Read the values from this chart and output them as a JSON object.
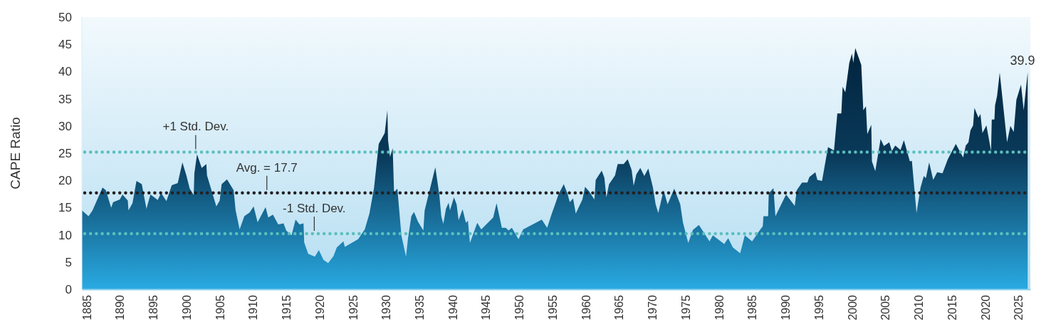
{
  "chart_data": {
    "type": "area",
    "ylabel": "CAPE Ratio",
    "xlim": [
      1884.3,
      2026.8
    ],
    "ylim": [
      0,
      50
    ],
    "xticks": [
      1885,
      1890,
      1895,
      1900,
      1905,
      1910,
      1915,
      1920,
      1925,
      1930,
      1935,
      1940,
      1945,
      1950,
      1955,
      1960,
      1965,
      1970,
      1975,
      1980,
      1985,
      1990,
      1995,
      2000,
      2005,
      2010,
      2015,
      2020,
      2025
    ],
    "yticks": [
      0,
      5,
      10,
      15,
      20,
      25,
      30,
      35,
      40,
      45,
      50
    ],
    "grid": false,
    "series": [
      {
        "color": "#0a3a5a",
        "x": [
          1884.3,
          1885.3,
          1885.9,
          1887.4,
          1887.9,
          1888.7,
          1889.0,
          1890.0,
          1890.4,
          1891.2,
          1891.3,
          1891.9,
          1892.5,
          1893.3,
          1894.0,
          1894.6,
          1895.7,
          1896.2,
          1897.0,
          1897.8,
          1898.7,
          1899.4,
          1900.0,
          1900.5,
          1901.1,
          1901.2,
          1901.6,
          1902.3,
          1903.0,
          1903.1,
          1903.7,
          1904.5,
          1905.0,
          1905.3,
          1906.1,
          1907.1,
          1907.4,
          1908.0,
          1908.7,
          1909.5,
          1910.1,
          1910.7,
          1911.9,
          1912.3,
          1913.0,
          1913.8,
          1914.6,
          1915.0,
          1915.8,
          1916.4,
          1917.0,
          1917.6,
          1917.7,
          1918.3,
          1919.3,
          1919.9,
          1920.6,
          1921.3,
          1922.1,
          1922.6,
          1923.6,
          1923.8,
          1925.8,
          1926.8,
          1927.5,
          1928.2,
          1928.9,
          1929.8,
          1930.2,
          1930.3,
          1930.6,
          1931.0,
          1931.2,
          1931.7,
          1932.3,
          1933.0,
          1933.3,
          1933.8,
          1934.2,
          1934.8,
          1935.6,
          1935.8,
          1937.4,
          1938.0,
          1938.3,
          1938.6,
          1939.0,
          1939.4,
          1939.6,
          1940.2,
          1940.6,
          1940.9,
          1941.5,
          1942.0,
          1942.3,
          1942.6,
          1943.7,
          1944.3,
          1946.1,
          1946.6,
          1947.4,
          1948.0,
          1948.4,
          1948.9,
          1949.9,
          1950.6,
          1953.4,
          1954.2,
          1954.9,
          1955.4,
          1955.9,
          1956.7,
          1957.3,
          1957.6,
          1958.1,
          1958.5,
          1959.5,
          1959.9,
          1960.5,
          1961.3,
          1961.5,
          1962.4,
          1962.8,
          1963.1,
          1963.5,
          1964.4,
          1964.8,
          1965.7,
          1966.3,
          1966.9,
          1967.2,
          1967.6,
          1968.2,
          1968.8,
          1969.4,
          1970.1,
          1970.5,
          1970.9,
          1971.7,
          1972.3,
          1973.3,
          1974.2,
          1974.6,
          1975.4,
          1976.1,
          1977.0,
          1978.6,
          1979.1,
          1980.8,
          1981.4,
          1982.1,
          1983.2,
          1983.9,
          1985.0,
          1986.0,
          1986.6,
          1986.7,
          1987.4,
          1987.5,
          1988.2,
          1988.5,
          1990.1,
          1991.4,
          1991.7,
          1992.5,
          1993.3,
          1993.6,
          1994.5,
          1994.8,
          1995.5,
          1996.4,
          1997.3,
          1997.8,
          1998.4,
          1998.6,
          1999.0,
          1999.6,
          2000.0,
          2000.2,
          2000.5,
          2001.4,
          2001.7,
          2002.1,
          2002.3,
          2002.9,
          2003.0,
          2003.5,
          2004.3,
          2004.8,
          2005.6,
          2006.0,
          2006.5,
          2007.3,
          2007.8,
          2008.7,
          2009.0,
          2009.7,
          2010.3,
          2010.8,
          2011.1,
          2011.6,
          2012.2,
          2012.8,
          2013.6,
          2014.4,
          2015.6,
          2016.7,
          2017.1,
          2017.5,
          2017.8,
          2018.2,
          2018.4,
          2019.0,
          2019.3,
          2019.6,
          2020.2,
          2020.9,
          2021.0,
          2021.4,
          2021.5,
          2021.8,
          2022.2,
          2023.3,
          2023.8,
          2024.3,
          2024.7,
          2025.4,
          2025.8,
          2026.4
        ],
        "values": [
          14.5,
          13.4,
          14.5,
          18.7,
          18.2,
          15.0,
          16.0,
          16.5,
          17.4,
          16.3,
          14.5,
          15.8,
          19.9,
          19.3,
          14.8,
          17.4,
          16.4,
          17.7,
          16.2,
          19.1,
          19.5,
          23.3,
          20.9,
          18.5,
          17.3,
          21.3,
          24.8,
          22.3,
          23.0,
          20.9,
          18.5,
          15.2,
          16.3,
          19.3,
          20.2,
          18.2,
          14.5,
          11.0,
          13.4,
          14.1,
          15.2,
          12.3,
          15.1,
          13.2,
          13.7,
          11.9,
          12.1,
          10.8,
          9.9,
          12.8,
          11.9,
          12.1,
          8.6,
          6.5,
          6.0,
          7.2,
          5.4,
          4.8,
          6.1,
          7.7,
          8.8,
          7.8,
          9.2,
          11.0,
          13.9,
          18.7,
          26.7,
          28.7,
          32.9,
          27.4,
          24.3,
          25.9,
          17.8,
          18.5,
          9.9,
          6.0,
          9.4,
          13.4,
          14.2,
          12.4,
          10.8,
          14.5,
          22.4,
          17.4,
          13.4,
          12.0,
          14.8,
          15.9,
          14.5,
          16.9,
          15.6,
          12.7,
          14.7,
          12.2,
          12.6,
          8.5,
          12.2,
          11.0,
          13.2,
          15.8,
          11.3,
          11.3,
          10.8,
          11.3,
          9.2,
          11.0,
          12.8,
          11.3,
          13.9,
          15.6,
          17.4,
          19.3,
          17.4,
          16.0,
          16.7,
          13.9,
          16.5,
          18.8,
          18.0,
          16.5,
          20.1,
          21.8,
          20.5,
          16.9,
          19.3,
          20.9,
          23.0,
          23.0,
          23.9,
          21.9,
          19.0,
          21.1,
          22.3,
          20.8,
          22.2,
          18.7,
          15.6,
          14.0,
          18.2,
          15.6,
          18.5,
          15.6,
          12.3,
          8.5,
          10.9,
          11.8,
          8.8,
          9.9,
          8.3,
          9.4,
          7.7,
          6.6,
          9.9,
          8.8,
          10.6,
          11.6,
          13.4,
          13.4,
          17.6,
          18.6,
          13.4,
          17.4,
          15.3,
          18.2,
          19.6,
          19.6,
          20.6,
          21.5,
          20.1,
          19.9,
          26.1,
          25.5,
          32.3,
          32.3,
          37.2,
          36.2,
          41.6,
          43.3,
          41.6,
          44.3,
          41.2,
          32.9,
          33.6,
          28.5,
          30.2,
          23.5,
          21.7,
          27.6,
          26.3,
          27.0,
          25.4,
          26.4,
          25.6,
          27.4,
          23.5,
          23.6,
          14.0,
          18.7,
          20.8,
          20.4,
          23.3,
          20.1,
          21.5,
          21.3,
          23.9,
          26.7,
          24.2,
          26.4,
          27.0,
          29.2,
          30.1,
          33.3,
          31.5,
          32.2,
          28.7,
          30.1,
          25.4,
          31.2,
          31.2,
          33.8,
          35.5,
          39.8,
          27.0,
          30.0,
          28.9,
          34.8,
          37.6,
          32.9,
          39.9
        ]
      }
    ],
    "ref_lines": [
      {
        "axis": "y",
        "value": 25.2,
        "label": "+1 Std. Dev.",
        "color": "#5bbfbd",
        "line_style": "dotted"
      },
      {
        "axis": "y",
        "value": 17.7,
        "label": "Avg. = 17.7",
        "color": "#231f20",
        "line_style": "dotted"
      },
      {
        "axis": "y",
        "value": 10.2,
        "label": "-1 Std. Dev.",
        "color": "#5bbfbd",
        "line_style": "dotted"
      }
    ],
    "annotations": [
      {
        "text": "39.9",
        "x": 2026.4,
        "y": 39.9
      }
    ]
  }
}
